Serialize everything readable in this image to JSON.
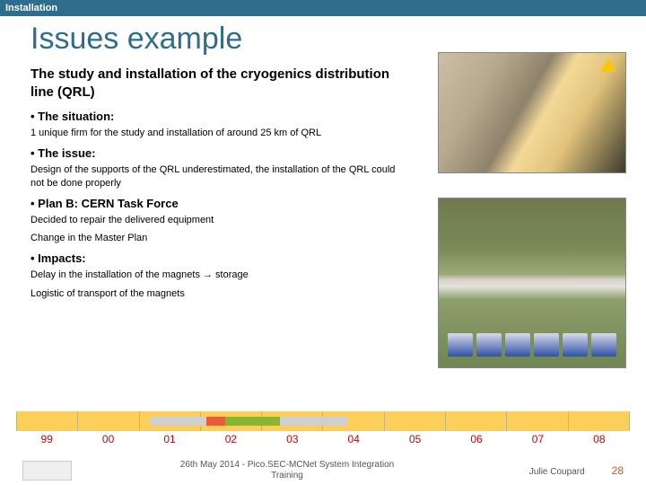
{
  "header": {
    "section": "Installation"
  },
  "title": "Issues example",
  "subtitle": "The study and installation of the cryogenics distribution line (QRL)",
  "bullets": [
    {
      "head": "The situation:",
      "paras": [
        "1 unique firm for the study and installation of around 25 km of QRL"
      ]
    },
    {
      "head": "The issue:",
      "paras": [
        "Design of the supports of the QRL underestimated, the installation of the QRL could not be done properly"
      ]
    },
    {
      "head": "Plan B: CERN Task Force",
      "paras": [
        "Decided to repair the delivered equipment",
        "Change in the Master Plan"
      ]
    },
    {
      "head": "Impacts:",
      "paras": [
        "Delay in the installation of the magnets → storage",
        "Logistic of transport of the magnets"
      ]
    }
  ],
  "timeline": {
    "cell_color": "#fccf5a",
    "border_color": "#c0b87a",
    "years": [
      "99",
      "00",
      "01",
      "02",
      "03",
      "04",
      "05",
      "06",
      "07",
      "08"
    ],
    "gantt": {
      "left_pct": 22,
      "segments": [
        {
          "color": "#cfcfcf",
          "width_pct": 9
        },
        {
          "color": "#e85c3c",
          "width_pct": 3
        },
        {
          "color": "#8ab52e",
          "width_pct": 9
        },
        {
          "color": "#cfcfcf",
          "width_pct": 11
        }
      ]
    }
  },
  "footer": {
    "center_line1": "26th May 2014 - Pico.SEC-MCNet System Integration",
    "center_line2": "Training",
    "author": "Julie Coupard",
    "page": "28"
  }
}
